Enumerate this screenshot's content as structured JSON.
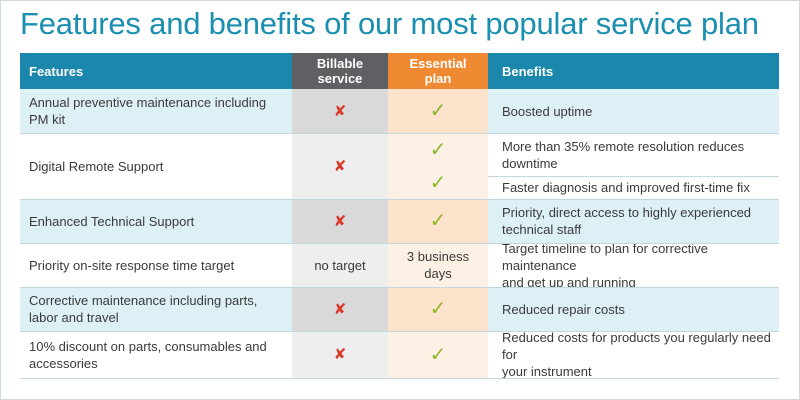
{
  "title": "Features and benefits of our most popular service plan",
  "headers": {
    "features": "Features",
    "billable_line1": "Billable",
    "billable_line2": "service",
    "essential_line1": "Essential",
    "essential_line2": "plan",
    "benefits": "Benefits"
  },
  "colors": {
    "title": "#1b8fb0",
    "header_blue": "#1b87ad",
    "header_grey": "#5e6064",
    "header_orange": "#f08a32",
    "cross": "#d93a2b",
    "check": "#8cb82b"
  },
  "symbols": {
    "cross": "✘",
    "check": "✓"
  },
  "rows": [
    {
      "feature_line1": "Annual preventive maintenance including",
      "feature_line2": "PM kit",
      "billable_icon": "cross-icon",
      "essential_icon": "check-icon",
      "benefit": "Boosted uptime"
    },
    {
      "feature": "Digital Remote Support",
      "billable_icon": "cross-icon",
      "essential_icon": "check-icon",
      "benefit_line1": "More than 35% remote resolution reduces",
      "benefit_line2": "downtime",
      "benefit2": "Faster diagnosis and improved first-time fix"
    },
    {
      "feature": "Enhanced Technical Support",
      "billable_icon": "cross-icon",
      "essential_icon": "check-icon",
      "benefit_line1": "Priority, direct access to highly experienced",
      "benefit_line2": "technical staff"
    },
    {
      "feature": "Priority on-site response time target",
      "billable_text": "no target",
      "essential_line1": "3 business",
      "essential_line2": "days",
      "benefit_line1": "Target timeline to plan for corrective maintenance",
      "benefit_line2": "and get up and running"
    },
    {
      "feature_line1": "Corrective maintenance including parts,",
      "feature_line2": "labor and travel",
      "billable_icon": "cross-icon",
      "essential_icon": "check-icon",
      "benefit": "Reduced repair costs"
    },
    {
      "feature_line1": "10% discount on parts, consumables and",
      "feature_line2": "accessories",
      "billable_icon": "cross-icon",
      "essential_icon": "check-icon",
      "benefit_line1": "Reduced costs for products you regularly need for",
      "benefit_line2": "your instrument"
    }
  ]
}
